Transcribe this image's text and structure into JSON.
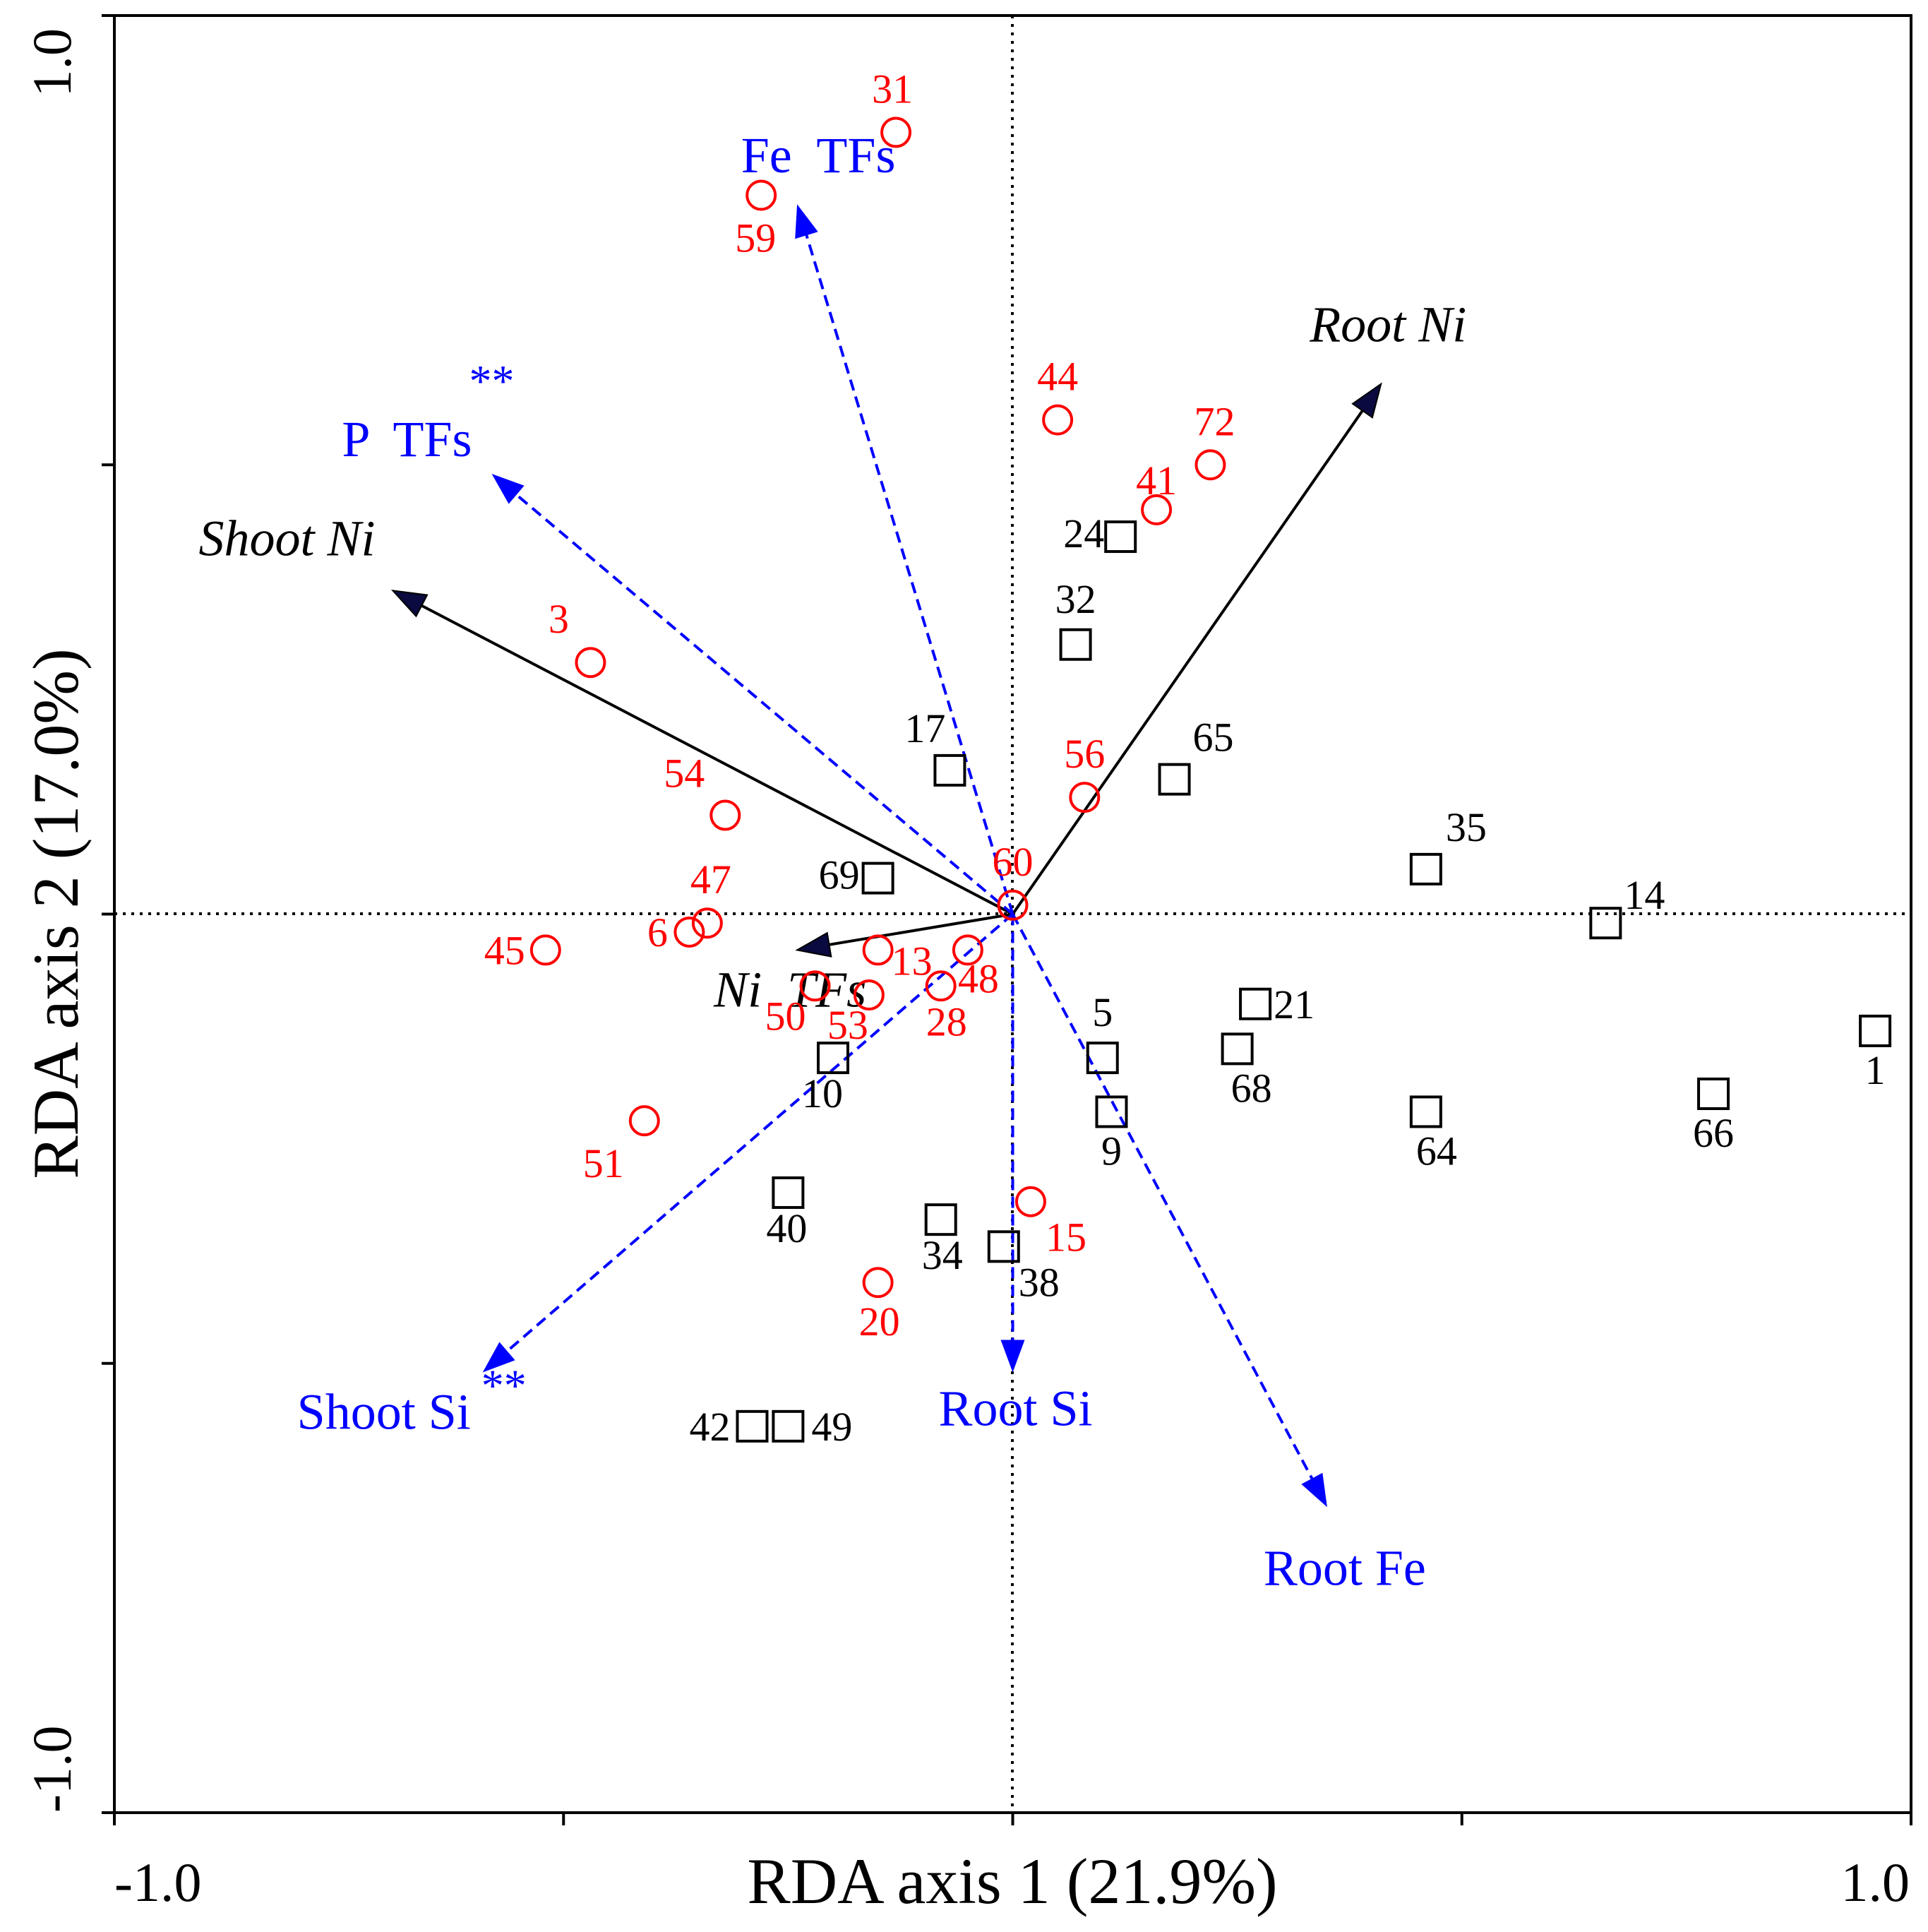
{
  "chart_data": {
    "type": "scatter",
    "title": "",
    "xlabel": "RDA axis 1 (21.9%)",
    "ylabel": "RDA axis 2 (17.0%)",
    "xlim": [
      -1.0,
      1.0
    ],
    "ylim": [
      -1.0,
      1.0
    ],
    "x_tick_labels": [
      {
        "value": -1.0,
        "label": "-1.0"
      },
      {
        "value": 1.0,
        "label": "1.0"
      }
    ],
    "y_tick_labels": [
      {
        "value": -1.0,
        "label": "-1.0"
      },
      {
        "value": 1.0,
        "label": "1.0"
      }
    ],
    "x_tick_values": [
      -1.0,
      -0.5,
      0.0,
      0.5,
      1.0
    ],
    "y_tick_values": [
      -1.0,
      -0.5,
      0.0,
      0.5,
      1.0
    ],
    "zero_lines": true,
    "colors": {
      "axis": "#000000",
      "red_series": "#ff0000",
      "black_series": "#000000",
      "blue_vector": "#0000ff",
      "arrow_head_dark": "#0a0a40"
    },
    "vectors": [
      {
        "name": "Root Ni",
        "x": 0.41,
        "y": 0.59,
        "style": "solid",
        "color": "#000000",
        "italic": true,
        "significance": ""
      },
      {
        "name": "Shoot Ni",
        "x": -0.69,
        "y": 0.36,
        "style": "solid",
        "color": "#000000",
        "italic": true,
        "significance": ""
      },
      {
        "name": "Ni  TFs",
        "x": -0.24,
        "y": -0.04,
        "style": "solid",
        "color": "#000000",
        "italic": true,
        "significance": ""
      },
      {
        "name": "Fe  TFs",
        "x": -0.24,
        "y": 0.79,
        "style": "dashed",
        "color": "#0000ff",
        "italic": false,
        "significance": ""
      },
      {
        "name": "P  TFs",
        "x": -0.58,
        "y": 0.49,
        "style": "dashed",
        "color": "#0000ff",
        "italic": false,
        "significance": "**"
      },
      {
        "name": "Shoot Si",
        "x": -0.59,
        "y": -0.51,
        "style": "dashed",
        "color": "#0000ff",
        "italic": false,
        "significance": "**"
      },
      {
        "name": "Root Si",
        "x": 0.0,
        "y": -0.51,
        "style": "dashed",
        "color": "#0000ff",
        "italic": false,
        "significance": ""
      },
      {
        "name": "Root Fe",
        "x": 0.35,
        "y": -0.66,
        "style": "dashed",
        "color": "#0000ff",
        "italic": false,
        "significance": ""
      }
    ],
    "series": [
      {
        "name": "circles",
        "marker": "circle",
        "color": "#ff0000",
        "points": [
          {
            "label": "31",
            "x": -0.13,
            "y": 0.87
          },
          {
            "label": "59",
            "x": -0.28,
            "y": 0.8
          },
          {
            "label": "44",
            "x": 0.05,
            "y": 0.55
          },
          {
            "label": "72",
            "x": 0.22,
            "y": 0.5
          },
          {
            "label": "41",
            "x": 0.16,
            "y": 0.45
          },
          {
            "label": "3",
            "x": -0.47,
            "y": 0.28
          },
          {
            "label": "54",
            "x": -0.32,
            "y": 0.11
          },
          {
            "label": "56",
            "x": 0.08,
            "y": 0.13
          },
          {
            "label": "60",
            "x": 0.0,
            "y": 0.01
          },
          {
            "label": "47",
            "x": -0.34,
            "y": -0.01
          },
          {
            "label": "6",
            "x": -0.36,
            "y": -0.02
          },
          {
            "label": "45",
            "x": -0.52,
            "y": -0.04
          },
          {
            "label": "13",
            "x": -0.15,
            "y": -0.04
          },
          {
            "label": "48",
            "x": -0.05,
            "y": -0.04
          },
          {
            "label": "50",
            "x": -0.22,
            "y": -0.08
          },
          {
            "label": "53",
            "x": -0.16,
            "y": -0.09
          },
          {
            "label": "28",
            "x": -0.08,
            "y": -0.08
          },
          {
            "label": "51",
            "x": -0.41,
            "y": -0.23
          },
          {
            "label": "15",
            "x": 0.02,
            "y": -0.32
          },
          {
            "label": "20",
            "x": -0.15,
            "y": -0.41
          }
        ]
      },
      {
        "name": "squares",
        "marker": "square",
        "color": "#000000",
        "points": [
          {
            "label": "24",
            "x": 0.12,
            "y": 0.42
          },
          {
            "label": "32",
            "x": 0.07,
            "y": 0.3
          },
          {
            "label": "17",
            "x": -0.07,
            "y": 0.16
          },
          {
            "label": "65",
            "x": 0.18,
            "y": 0.15
          },
          {
            "label": "35",
            "x": 0.46,
            "y": 0.05
          },
          {
            "label": "69",
            "x": -0.15,
            "y": 0.04
          },
          {
            "label": "14",
            "x": 0.66,
            "y": -0.01
          },
          {
            "label": "21",
            "x": 0.27,
            "y": -0.1
          },
          {
            "label": "1",
            "x": 0.96,
            "y": -0.13
          },
          {
            "label": "68",
            "x": 0.25,
            "y": -0.15
          },
          {
            "label": "5",
            "x": 0.1,
            "y": -0.16
          },
          {
            "label": "10",
            "x": -0.2,
            "y": -0.16
          },
          {
            "label": "9",
            "x": 0.11,
            "y": -0.22
          },
          {
            "label": "64",
            "x": 0.46,
            "y": -0.22
          },
          {
            "label": "66",
            "x": 0.78,
            "y": -0.2
          },
          {
            "label": "40",
            "x": -0.25,
            "y": -0.31
          },
          {
            "label": "34",
            "x": -0.08,
            "y": -0.34
          },
          {
            "label": "38",
            "x": -0.01,
            "y": -0.37
          },
          {
            "label": "42",
            "x": -0.29,
            "y": -0.57
          },
          {
            "label": "49",
            "x": -0.25,
            "y": -0.57
          }
        ]
      }
    ]
  }
}
